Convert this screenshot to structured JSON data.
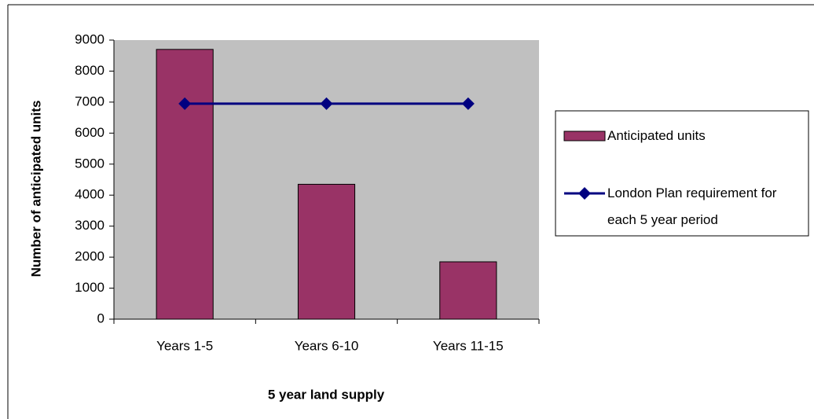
{
  "chart_data": {
    "type": "bar",
    "x_label": "5 year land supply",
    "y_label": "Number of anticipated units",
    "categories": [
      "Years 1-5",
      "Years 6-10",
      "Years 11-15"
    ],
    "series": [
      {
        "name": "Anticipated units",
        "type": "bar",
        "color": "#993366",
        "values": [
          8700,
          4350,
          1850
        ]
      },
      {
        "name": "London Plan requirement for each 5 year period",
        "type": "line",
        "color": "#000080",
        "values": [
          6950,
          6950,
          6950
        ]
      }
    ],
    "ylim": [
      0,
      9000
    ],
    "yticks": [
      0,
      1000,
      2000,
      3000,
      4000,
      5000,
      6000,
      7000,
      8000,
      9000
    ],
    "plot_background": "#c0c0c0",
    "grid": false,
    "legend": "right"
  }
}
